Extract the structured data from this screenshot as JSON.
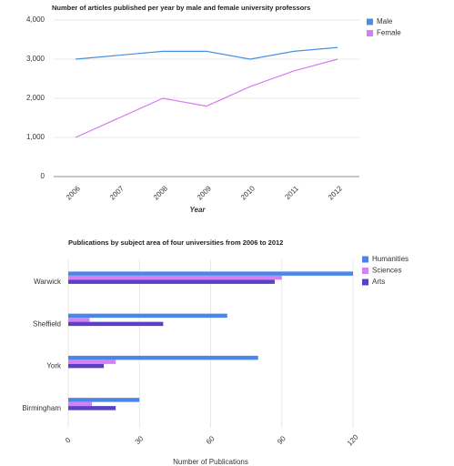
{
  "chart_data": [
    {
      "type": "line",
      "title": "Number of articles published per year by male and female university professors",
      "categories": [
        "2006",
        "2007",
        "2008",
        "2009",
        "2010",
        "2011",
        "2012"
      ],
      "series": [
        {
          "name": "Male",
          "color": "#4a90e2",
          "values": [
            3000,
            3100,
            3200,
            3200,
            3000,
            3200,
            3300
          ]
        },
        {
          "name": "Female",
          "color": "#d77cf2",
          "values": [
            1000,
            1500,
            2000,
            1800,
            2300,
            2700,
            3000
          ]
        }
      ],
      "ylim": [
        0,
        4000
      ],
      "yticks": [
        0,
        {
          "value": 1000,
          "label": "1,000"
        },
        {
          "value": 2000,
          "label": "2,000"
        },
        {
          "value": 3000,
          "label": "3,000"
        },
        {
          "value": 4000,
          "label": "4,000"
        }
      ],
      "xlabel": "Year",
      "grid": true,
      "legend": "right"
    },
    {
      "type": "hbar",
      "title": "Publications by subject area of four universities from 2006 to 2012",
      "categories": [
        "Warwick",
        "Sheffield",
        "York",
        "Birmingham"
      ],
      "series": [
        {
          "name": "Humanities",
          "color": "#4a86e8",
          "values": [
            120,
            67,
            80,
            30
          ]
        },
        {
          "name": "Sciences",
          "color": "#d580f5",
          "values": [
            90,
            9,
            20,
            10
          ]
        },
        {
          "name": "Arts",
          "color": "#5b3fc4",
          "values": [
            87,
            40,
            15,
            20
          ]
        }
      ],
      "xlim": [
        0,
        120
      ],
      "xticks": [
        0,
        30,
        60,
        90,
        120
      ],
      "xlabel": "Number of Publications",
      "grid": true,
      "legend": "right"
    }
  ]
}
